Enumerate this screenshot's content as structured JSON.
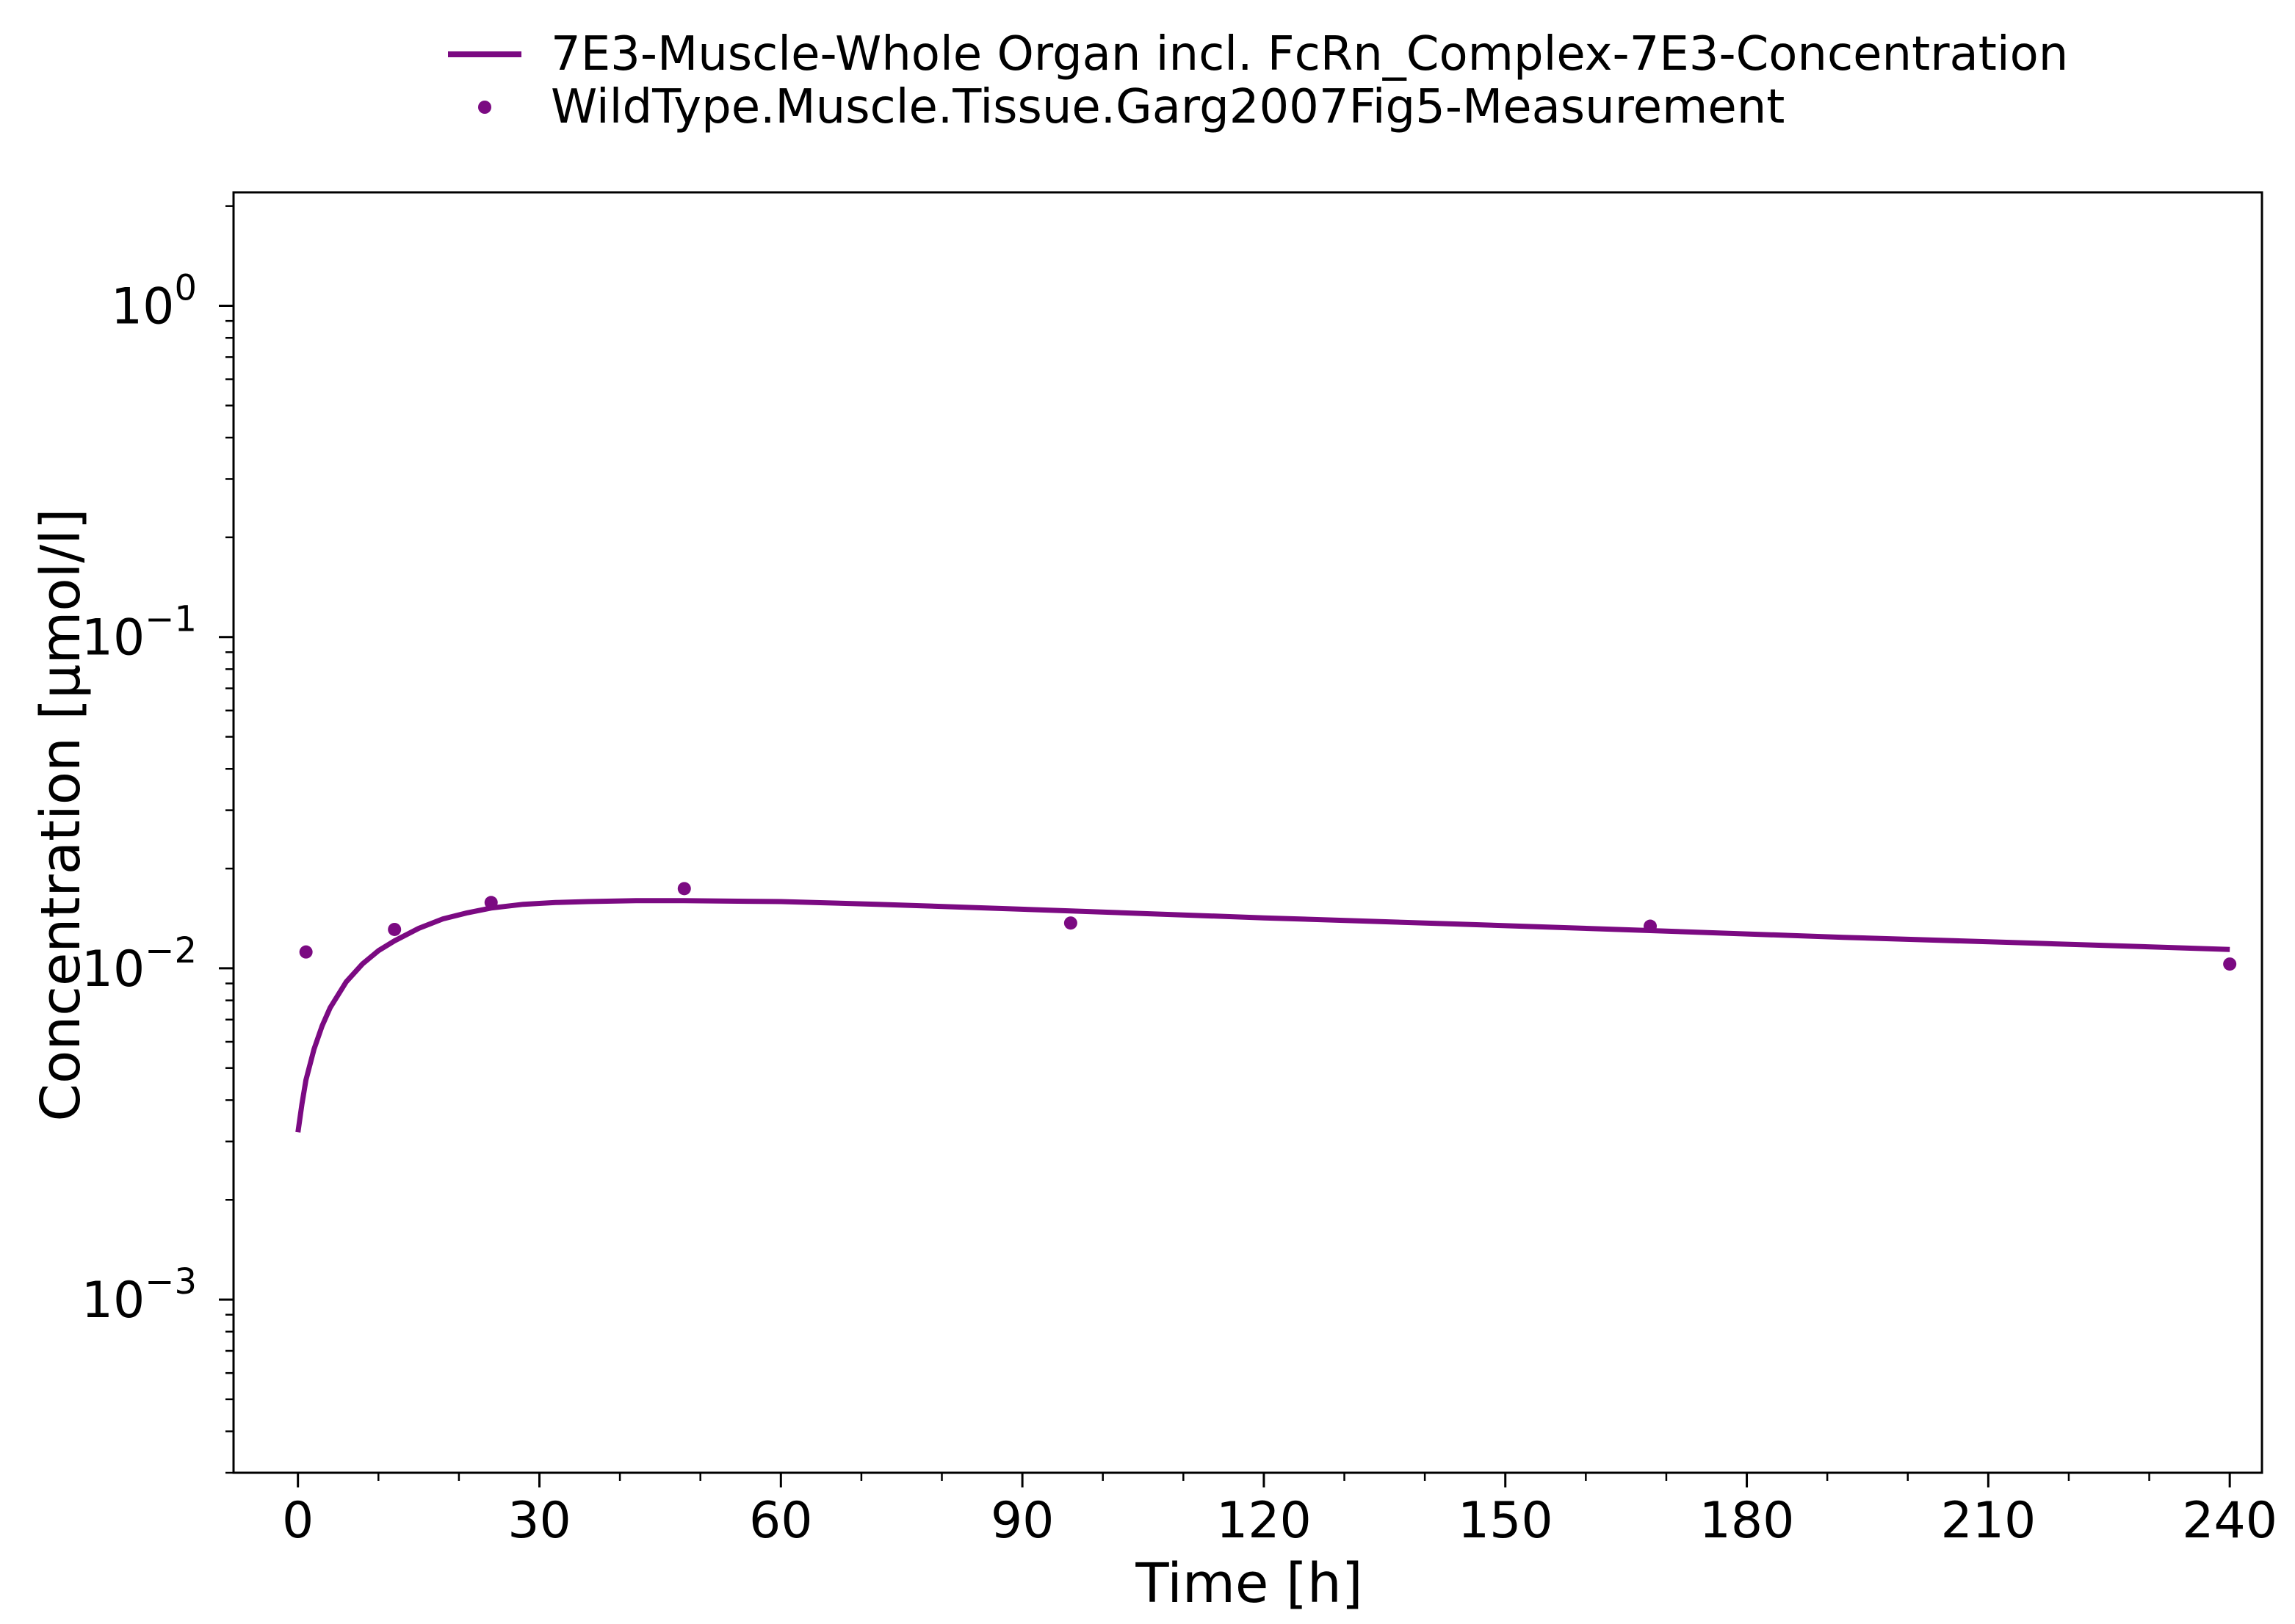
{
  "chart_data": {
    "type": "line",
    "xlabel": "Time [h]",
    "ylabel": "Concentration [µmol/l]",
    "xlim": [
      -8,
      244
    ],
    "ylim": [
      0.0003,
      2.2
    ],
    "yscale": "log",
    "x_ticks": [
      0,
      30,
      60,
      90,
      120,
      150,
      180,
      210,
      240
    ],
    "y_ticks": [
      {
        "value": 0.001,
        "base": "10",
        "exp": "−3"
      },
      {
        "value": 0.01,
        "base": "10",
        "exp": "−2"
      },
      {
        "value": 0.1,
        "base": "10",
        "exp": "−1"
      },
      {
        "value": 1,
        "base": "10",
        "exp": "0"
      }
    ],
    "grid": false,
    "legend_position": "top-center",
    "series": [
      {
        "name": "7E3-Muscle-Whole Organ incl. FcRn_Complex-7E3-Concentration",
        "style": "line",
        "color": "#7b0a82",
        "x": [
          0,
          0.5,
          1,
          2,
          3,
          4,
          6,
          8,
          10,
          12,
          15,
          18,
          21,
          24,
          28,
          32,
          36,
          42,
          48,
          60,
          72,
          96,
          120,
          144,
          168,
          192,
          216,
          240
        ],
        "y": [
          0.0032,
          0.0039,
          0.0046,
          0.0057,
          0.0067,
          0.0076,
          0.0091,
          0.0103,
          0.0113,
          0.0121,
          0.0132,
          0.0141,
          0.0147,
          0.0152,
          0.0156,
          0.0158,
          0.0159,
          0.016,
          0.016,
          0.0159,
          0.0156,
          0.0149,
          0.0142,
          0.0136,
          0.013,
          0.0124,
          0.0119,
          0.0114
        ]
      },
      {
        "name": "WildType.Muscle.Tissue.Garg2007Fig5-Measurement",
        "style": "scatter",
        "color": "#7b0a82",
        "x": [
          1,
          12,
          24,
          48,
          96,
          168,
          240
        ],
        "y": [
          0.0112,
          0.0131,
          0.0158,
          0.0174,
          0.0137,
          0.0134,
          0.0103
        ]
      }
    ]
  }
}
